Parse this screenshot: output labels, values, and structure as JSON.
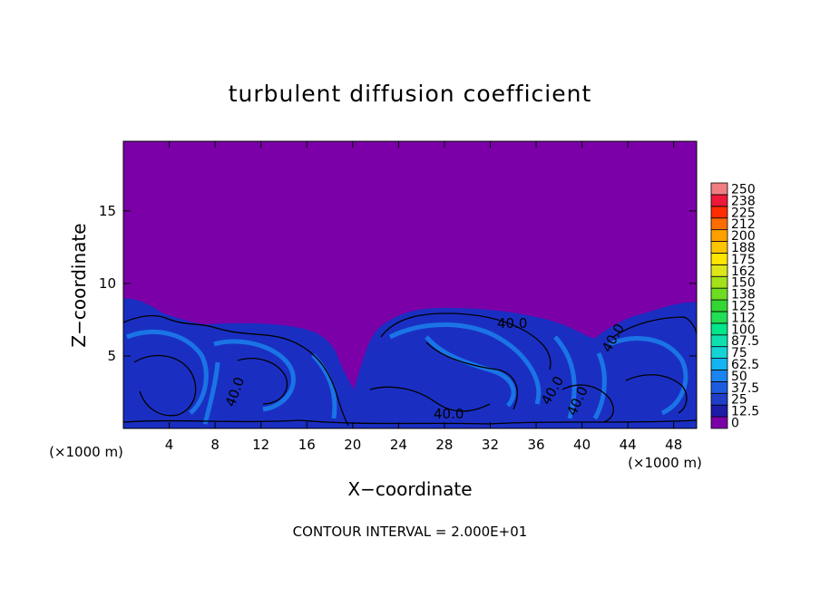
{
  "chart_data": {
    "type": "heatmap",
    "title": "turbulent diffusion coefficient",
    "xlabel": "X−coordinate",
    "ylabel": "Z−coordinate",
    "x_unit_left": "(×1000 m)",
    "x_unit_right": "(×1000 m)",
    "footer": "CONTOUR INTERVAL = 2.000E+01",
    "xlim": [
      0,
      50
    ],
    "ylim": [
      0,
      19.8
    ],
    "x_ticks": [
      4,
      8,
      12,
      16,
      20,
      24,
      28,
      32,
      36,
      40,
      44,
      48
    ],
    "y_ticks": [
      5,
      10,
      15
    ],
    "contour_labels": [
      "40.0",
      "40.0",
      "40.0",
      "40.0",
      "40.0",
      "40.0"
    ],
    "colorbar": {
      "labels": [
        "0",
        "12.5",
        "25",
        "37.5",
        "50",
        "62.5",
        "75",
        "87.5",
        "100",
        "112",
        "125",
        "138",
        "150",
        "162",
        "175",
        "188",
        "200",
        "212",
        "225",
        "238",
        "250"
      ],
      "colors": [
        "#7b00a8",
        "#1c1ca8",
        "#1f3fc9",
        "#1c5de0",
        "#1a84f0",
        "#16b3f2",
        "#15d2d6",
        "#10e0b0",
        "#00e68a",
        "#22dd55",
        "#33d633",
        "#6edc22",
        "#a5e01a",
        "#dde619",
        "#ffe600",
        "#ffc400",
        "#ffa000",
        "#ff6d00",
        "#ff2d00",
        "#f01838",
        "#f07e80"
      ]
    },
    "background_value_color": "#7b00a8",
    "turbulence_color": "#1a2fc2",
    "turbulence_light_color": "#1a8cf2"
  }
}
